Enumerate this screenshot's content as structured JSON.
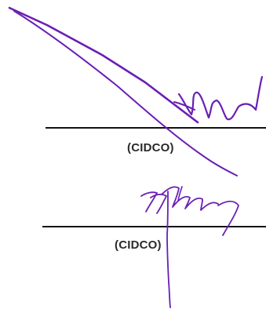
{
  "signature_blocks": [
    {
      "org_label": "(CIDCO)"
    },
    {
      "org_label": "(CIDCO)"
    }
  ],
  "colors": {
    "ink": "#6a1fb3",
    "line": "#111111",
    "label": "#2a2a2a"
  }
}
